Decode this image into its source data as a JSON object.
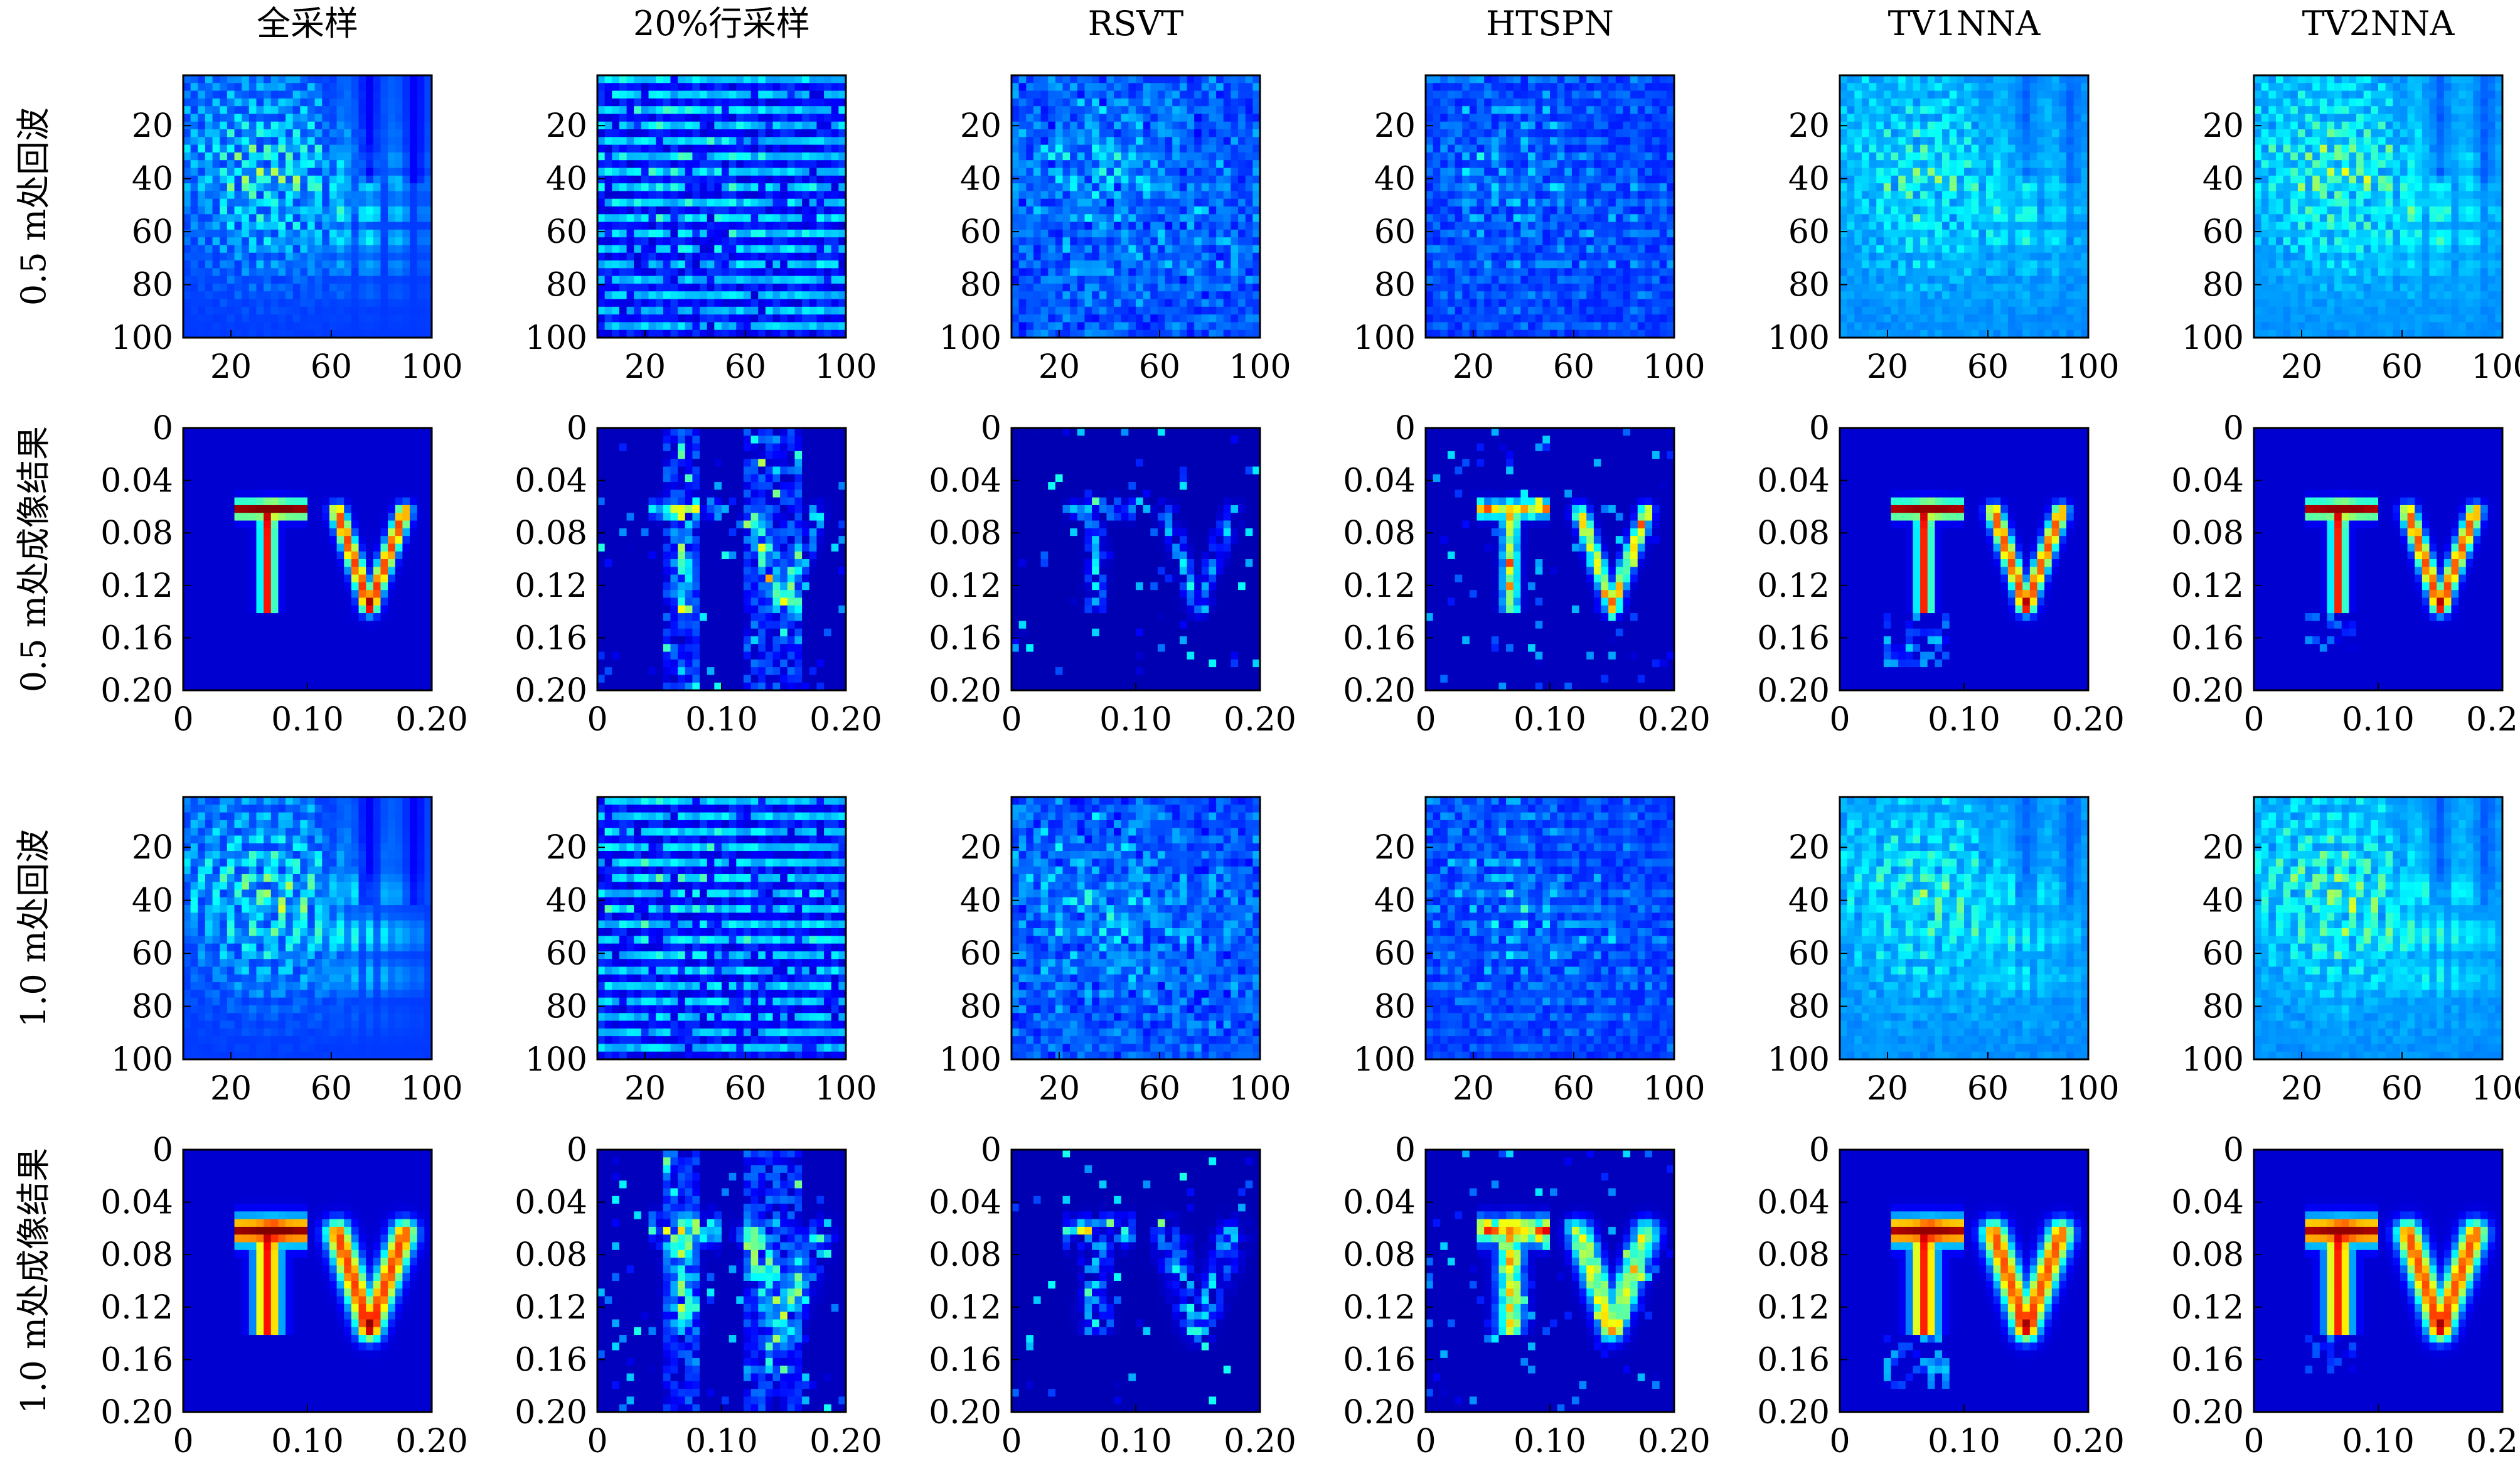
{
  "chart_data": {
    "type": "heatmap",
    "colormap": "jet",
    "column_titles": [
      "全采样",
      "20%行采样",
      "RSVT",
      "HTSPN",
      "TV1NNA",
      "TV2NNA"
    ],
    "row_labels": [
      "0.5 m处回波",
      "0.5 m处成像结果",
      "1.0 m处回波",
      "1.0 m处成像结果"
    ],
    "echo_axes": {
      "xticks": [
        "20",
        "60",
        "100"
      ],
      "yticks": [
        "20",
        "40",
        "60",
        "80",
        "100"
      ],
      "xlim": [
        1,
        100
      ],
      "ylim": [
        1,
        100
      ]
    },
    "image_axes": {
      "xticks": [
        "0",
        "0.10",
        "0.20"
      ],
      "yticks": [
        "0",
        "0.04",
        "0.08",
        "0.12",
        "0.16",
        "0.20"
      ],
      "xlim": [
        0,
        0.2
      ],
      "ylim": [
        0,
        0.2
      ]
    },
    "reconstructed_letters": "TV"
  }
}
